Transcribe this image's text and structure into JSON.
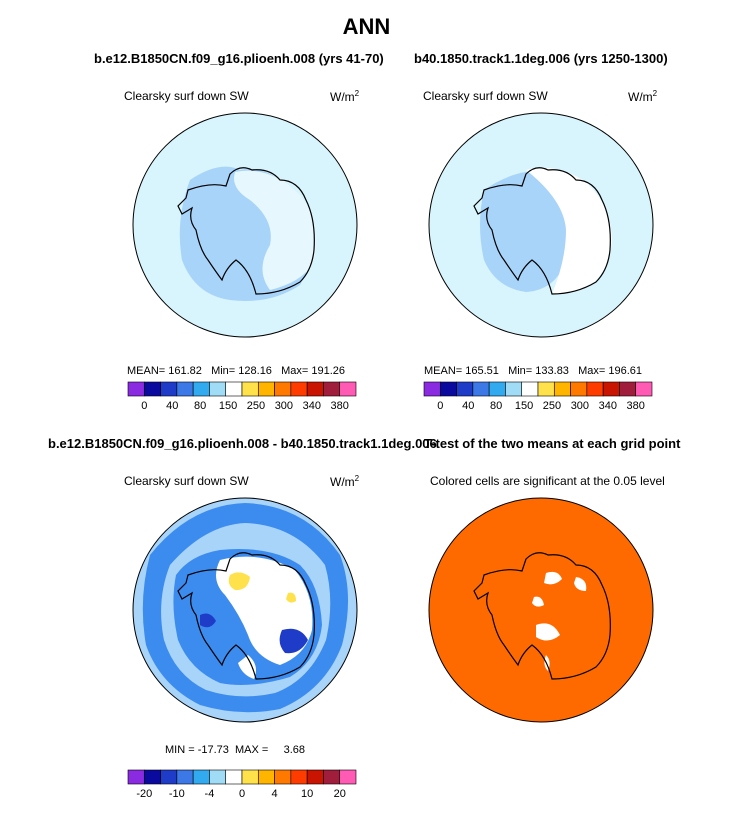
{
  "figure": {
    "title": "ANN",
    "left_case": "b.e12.B1850CN.f09_g16.plioenh.008 (yrs 41-70)",
    "right_case": "b40.1850.track1.1deg.006 (yrs 1250-1300)",
    "diff_case": "b.e12.B1850CN.f09_g16.plioenh.008 - b40.1850.track1.1deg.006",
    "ttest_title": "T-test of the two means at each grid point"
  },
  "panels": {
    "p1": {
      "variable": "Clearsky surf down SW",
      "units": "W/m",
      "units_exp": "2",
      "stats": "MEAN= 161.82   Min= 128.16   Max= 191.26"
    },
    "p2": {
      "variable": "Clearsky surf down SW",
      "units": "W/m",
      "units_exp": "2",
      "stats": "MEAN= 165.51   Min= 133.83   Max= 196.61"
    },
    "p3": {
      "variable": "Clearsky surf down SW",
      "units": "W/m",
      "units_exp": "2",
      "stats": "MIN = -17.73  MAX =     3.68"
    },
    "p4": {
      "caption": "Colored cells are significant at the 0.05 level"
    }
  },
  "colorbars": {
    "abs": {
      "colors": [
        "#8a2be2",
        "#0a0a9e",
        "#1e3cc8",
        "#3c78e6",
        "#32aaf0",
        "#a0dcf5",
        "#ffffff",
        "#ffe14b",
        "#ffb400",
        "#ff7800",
        "#ff3c00",
        "#c81400",
        "#a01e3c",
        "#ff5ab4"
      ],
      "ticks": [
        "0",
        "40",
        "80",
        "150",
        "250",
        "300",
        "340",
        "380"
      ]
    },
    "diff": {
      "colors": [
        "#8a2be2",
        "#0a0a9e",
        "#1e3cc8",
        "#3c78e6",
        "#32aaf0",
        "#a0dcf5",
        "#ffffff",
        "#ffe14b",
        "#ffb400",
        "#ff7800",
        "#ff3c00",
        "#c81400",
        "#a01e3c",
        "#ff5ab4"
      ],
      "ticks": [
        "-20",
        "-10",
        "-4",
        "0",
        "4",
        "10",
        "20"
      ]
    }
  },
  "colors": {
    "light_blue": "#d8f4fc",
    "mid_blue": "#a8d4fa",
    "blue": "#3c8cf0",
    "ttest_orange": "#ff6a00"
  },
  "chart_data": [
    {
      "type": "heatmap",
      "projection": "south polar stereographic",
      "title": "Clearsky surf down SW",
      "units": "W/m2",
      "stats": {
        "mean": 161.82,
        "min": 128.16,
        "max": 191.26
      },
      "colorbar_ticks": [
        0,
        40,
        80,
        150,
        250,
        300,
        340,
        380
      ]
    },
    {
      "type": "heatmap",
      "projection": "south polar stereographic",
      "title": "Clearsky surf down SW",
      "units": "W/m2",
      "stats": {
        "mean": 165.51,
        "min": 133.83,
        "max": 196.61
      },
      "colorbar_ticks": [
        0,
        40,
        80,
        150,
        250,
        300,
        340,
        380
      ]
    },
    {
      "type": "heatmap",
      "projection": "south polar stereographic",
      "title": "Clearsky surf down SW",
      "units": "W/m2",
      "stats": {
        "min": -17.73,
        "max": 3.68
      },
      "colorbar_ticks": [
        -20,
        -10,
        -4,
        0,
        4,
        10,
        20
      ]
    },
    {
      "type": "heatmap",
      "projection": "south polar stereographic",
      "title": "Colored cells are significant at the 0.05 level"
    }
  ]
}
